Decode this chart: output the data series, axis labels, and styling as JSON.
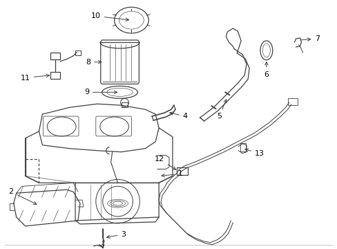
{
  "bg_color": "#ffffff",
  "line_color": "#404040",
  "label_color": "#000000",
  "fig_width": 4.89,
  "fig_height": 3.6,
  "dpi": 100
}
